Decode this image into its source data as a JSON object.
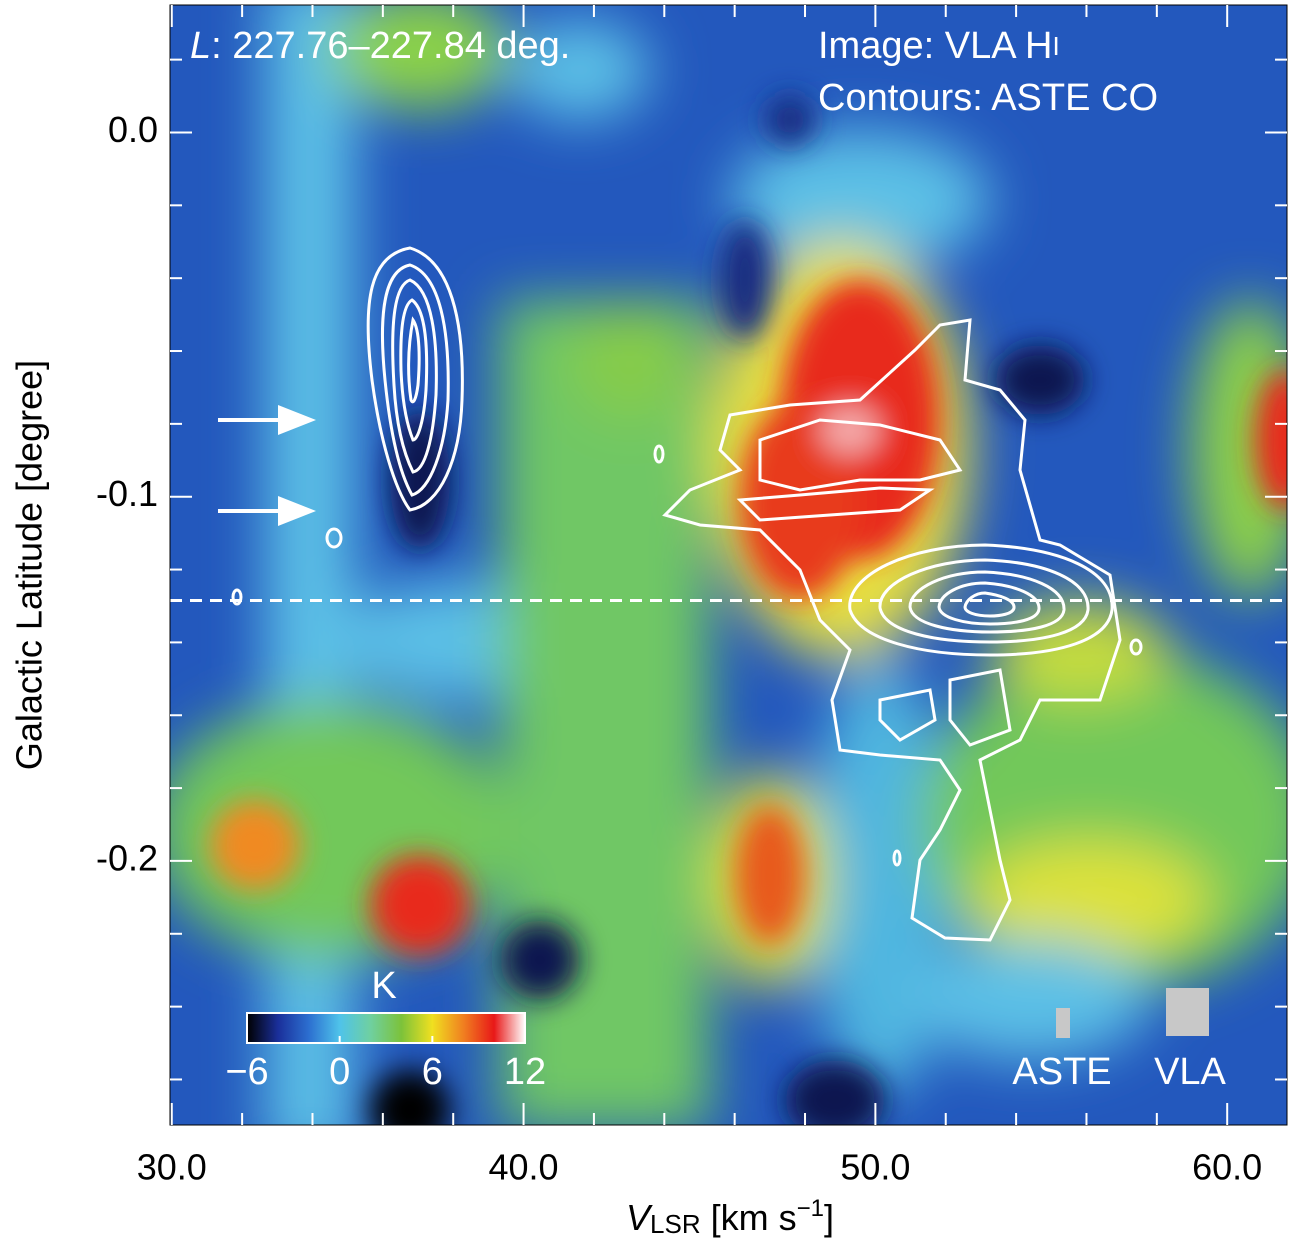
{
  "chart_data": {
    "type": "heatmap",
    "annotations": {
      "longitude": {
        "variable": "L",
        "text": ": 227.76–227.84 deg."
      },
      "image": {
        "text": "Image: VLA H",
        "suffix": "I"
      },
      "contours": "Contours: ASTE CO"
    },
    "xlabel": {
      "variable": "V",
      "subscript": "LSR",
      "unit": " [km s",
      "superscript": "−1",
      "close": "]"
    },
    "ylabel": "Galactic Latitude [degree]",
    "xlim": [
      29.95,
      61.7
    ],
    "ylim": [
      -0.2725,
      0.035
    ],
    "xticks": [
      {
        "value": 30,
        "label": "30.0"
      },
      {
        "value": 40,
        "label": "40.0"
      },
      {
        "value": 50,
        "label": "50.0"
      },
      {
        "value": 60,
        "label": "60.0"
      }
    ],
    "xminorticks": [
      32,
      34,
      36,
      38,
      42,
      44,
      46,
      48,
      52,
      54,
      56,
      58
    ],
    "yticks": [
      {
        "value": 0,
        "label": "0.0"
      },
      {
        "value": -0.1,
        "label": "-0.1"
      },
      {
        "value": -0.2,
        "label": "-0.2"
      }
    ],
    "yminorticks": [
      0.02,
      -0.02,
      -0.04,
      -0.06,
      -0.08,
      -0.12,
      -0.14,
      -0.16,
      -0.18,
      -0.22,
      -0.24,
      -0.26
    ],
    "reference_line": -0.1285,
    "colorbar": {
      "label": "K",
      "lim": [
        -6,
        12
      ],
      "ticks": [
        {
          "value": -6,
          "label": "−6"
        },
        0,
        6,
        12
      ],
      "colors": [
        "#000000",
        "#1a2f9a",
        "#2c6fd0",
        "#4fc3ea",
        "#6fd0a0",
        "#7cc23a",
        "#f0e020",
        "#f08020",
        "#e81818",
        "#ffffff"
      ]
    },
    "beams": [
      {
        "name": "ASTE"
      },
      {
        "name": "VLA"
      }
    ]
  }
}
